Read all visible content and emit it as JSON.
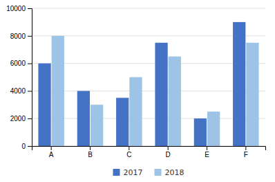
{
  "chart_data": {
    "type": "bar",
    "categories": [
      "A",
      "B",
      "C",
      "D",
      "E",
      "F"
    ],
    "series": [
      {
        "name": "2017",
        "color": "#4472C4",
        "values": [
          6000,
          4000,
          3500,
          7500,
          2000,
          9000
        ]
      },
      {
        "name": "2018",
        "color": "#9DC3E6",
        "values": [
          8000,
          3000,
          5000,
          6500,
          2500,
          7500
        ]
      }
    ],
    "ylim": [
      0,
      10000
    ],
    "yticks": [
      0,
      2000,
      4000,
      6000,
      8000,
      10000
    ],
    "grid": true,
    "legend": "bottom"
  }
}
